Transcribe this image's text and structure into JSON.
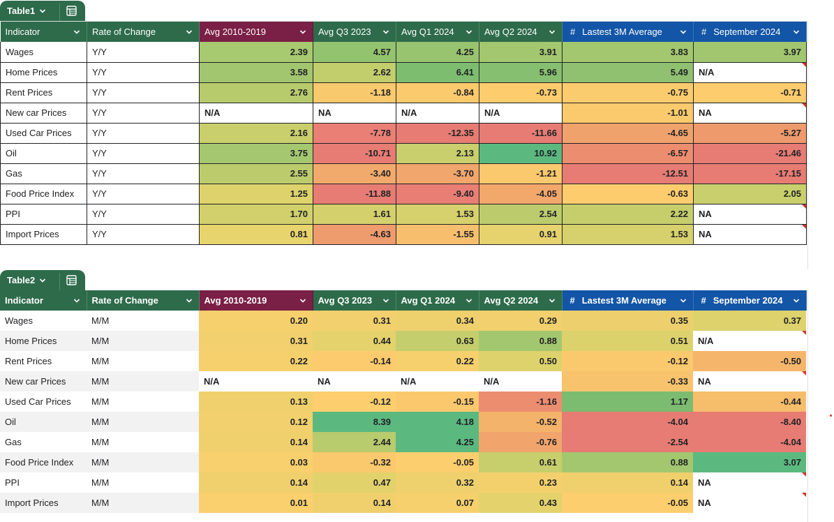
{
  "tables": [
    {
      "name": "Table1",
      "headers": {
        "indicator": "Indicator",
        "rate": "Rate of Change",
        "cols": [
          "Avg 2010-2019",
          "Avg Q3 2023",
          "Avg Q1 2024",
          "Avg Q2 2024",
          "Lastest 3M Average",
          "September 2024"
        ],
        "hash": "#"
      },
      "rows": [
        {
          "indicator": "Wages",
          "rate": "Y/Y",
          "values": [
            "2.39",
            "4.57",
            "4.25",
            "3.91",
            "3.83",
            "3.97"
          ],
          "colors": [
            "#a7c96f",
            "#94c36f",
            "#98c46f",
            "#a2c76f",
            "#a3c76f",
            "#a1c66f"
          ]
        },
        {
          "indicator": "Home Prices",
          "rate": "Y/Y",
          "values": [
            "3.58",
            "2.62",
            "6.41",
            "5.96",
            "5.49",
            "N/A"
          ],
          "colors": [
            "#a1c66f",
            "#c2cd6c",
            "#7dbd70",
            "#86bf70",
            "#8fc170",
            ""
          ]
        },
        {
          "indicator": "Rent Prices",
          "rate": "Y/Y",
          "values": [
            "2.76",
            "-1.18",
            "-0.84",
            "-0.73",
            "-0.75",
            "-0.71"
          ],
          "colors": [
            "#b7cb6d",
            "#f8c96d",
            "#fbca6d",
            "#fccc6d",
            "#fbcc6d",
            "#fccc6d"
          ]
        },
        {
          "indicator": "New car Prices",
          "rate": "Y/Y",
          "values": [
            "N/A",
            "NA",
            "N/A",
            "N/A",
            "-1.01",
            "NA"
          ],
          "colors": [
            "",
            "",
            "",
            "",
            "#fbca6d",
            ""
          ]
        },
        {
          "indicator": "Used Car Prices",
          "rate": "Y/Y",
          "values": [
            "2.16",
            "-7.78",
            "-12.35",
            "-11.66",
            "-4.65",
            "-5.27"
          ],
          "colors": [
            "#c9cf6c",
            "#ea7f75",
            "#e67c73",
            "#e67c73",
            "#f0a26c",
            "#ee9a6d"
          ]
        },
        {
          "indicator": "Oil",
          "rate": "Y/Y",
          "values": [
            "3.75",
            "-10.71",
            "2.13",
            "10.92",
            "-6.57",
            "-21.46"
          ],
          "colors": [
            "#a5c770",
            "#e67c73",
            "#c8cf6c",
            "#5bb980",
            "#ec8d70",
            "#e67c73"
          ]
        },
        {
          "indicator": "Gas",
          "rate": "Y/Y",
          "values": [
            "2.55",
            "-3.40",
            "-3.70",
            "-1.21",
            "-12.51",
            "-17.15"
          ],
          "colors": [
            "#bccc6d",
            "#f1aa6b",
            "#f0a66c",
            "#fbc96d",
            "#e67c73",
            "#e67c73"
          ]
        },
        {
          "indicator": "Food Price Index",
          "rate": "Y/Y",
          "values": [
            "1.25",
            "-11.88",
            "-9.40",
            "-4.05",
            "-0.63",
            "2.05"
          ],
          "colors": [
            "#ddd26c",
            "#e67c73",
            "#e87e74",
            "#f2a76b",
            "#fccc6d",
            "#c9cf6c"
          ]
        },
        {
          "indicator": "PPI",
          "rate": "Y/Y",
          "values": [
            "1.70",
            "1.61",
            "1.53",
            "2.54",
            "2.22",
            "NA"
          ],
          "colors": [
            "#d1d06c",
            "#d4d06c",
            "#d6d16c",
            "#bccc6d",
            "#c6ce6c",
            ""
          ]
        },
        {
          "indicator": "Import Prices",
          "rate": "Y/Y",
          "values": [
            "0.81",
            "-4.63",
            "-1.55",
            "0.91",
            "1.53",
            "NA"
          ],
          "colors": [
            "#e8d46d",
            "#ee9b6e",
            "#f7bf6d",
            "#e6d36d",
            "#d6d16c",
            ""
          ]
        }
      ]
    },
    {
      "name": "Table2",
      "headers": {
        "indicator": "Indicator",
        "rate": "Rate of Change",
        "cols": [
          "Avg 2010-2019",
          "Avg Q3 2023",
          "Avg Q1 2024",
          "Avg Q2 2024",
          "Lastest 3M Average",
          "September 2024"
        ],
        "hash": "#"
      },
      "rows": [
        {
          "indicator": "Wages",
          "rate": "M/M",
          "values": [
            "0.20",
            "0.31",
            "0.34",
            "0.29",
            "0.35",
            "0.37"
          ],
          "colors": [
            "#f5d06d",
            "#f1d06d",
            "#eed06d",
            "#f2d06d",
            "#edd06d",
            "#ddd26c"
          ]
        },
        {
          "indicator": "Home Prices",
          "rate": "M/M",
          "values": [
            "0.31",
            "0.44",
            "0.63",
            "0.88",
            "0.51",
            "N/A"
          ],
          "colors": [
            "#f1d06d",
            "#e5d26c",
            "#c5ce6c",
            "#a3c76f",
            "#dcd26c",
            ""
          ]
        },
        {
          "indicator": "Rent Prices",
          "rate": "M/M",
          "values": [
            "0.22",
            "-0.14",
            "0.22",
            "0.50",
            "-0.12",
            "-0.50"
          ],
          "colors": [
            "#f5d06d",
            "#fccb6d",
            "#f5d06d",
            "#ddd26c",
            "#fbc96d",
            "#f5b66b"
          ]
        },
        {
          "indicator": "New car Prices",
          "rate": "M/M",
          "values": [
            "N/A",
            "NA",
            "N/A",
            "N/A",
            "-0.33",
            "NA"
          ],
          "colors": [
            "",
            "",
            "",
            "",
            "#f8c36d",
            ""
          ]
        },
        {
          "indicator": "Used Car Prices",
          "rate": "M/M",
          "values": [
            "0.13",
            "-0.12",
            "-0.15",
            "-1.16",
            "1.17",
            "-0.44"
          ],
          "colors": [
            "#f0d06d",
            "#fcce6d",
            "#fcc86d",
            "#ec8d70",
            "#7cbc70",
            "#f6bd6b"
          ]
        },
        {
          "indicator": "Oil",
          "rate": "M/M",
          "values": [
            "0.12",
            "8.39",
            "4.18",
            "-0.52",
            "-4.04",
            "-8.40"
          ],
          "colors": [
            "#f1d06d",
            "#5bb980",
            "#5bb980",
            "#f4b36b",
            "#e67c73",
            "#e67c73"
          ]
        },
        {
          "indicator": "Gas",
          "rate": "M/M",
          "values": [
            "0.14",
            "2.44",
            "4.25",
            "-0.76",
            "-2.54",
            "-4.04"
          ],
          "colors": [
            "#f0d06d",
            "#b8cb6d",
            "#5bb980",
            "#f1a56c",
            "#e67c73",
            "#e67c73"
          ]
        },
        {
          "indicator": "Food Price Index",
          "rate": "M/M",
          "values": [
            "0.03",
            "-0.32",
            "-0.05",
            "0.61",
            "0.88",
            "3.07"
          ],
          "colors": [
            "#f8d06d",
            "#fbc96d",
            "#fcce6d",
            "#c7ce6c",
            "#a2c76f",
            "#5bb980"
          ]
        },
        {
          "indicator": "PPI",
          "rate": "M/M",
          "values": [
            "0.14",
            "0.47",
            "0.32",
            "0.23",
            "0.14",
            "NA"
          ],
          "colors": [
            "#f0d06d",
            "#e2d26c",
            "#eed06d",
            "#f4d06d",
            "#f0d06d",
            ""
          ]
        },
        {
          "indicator": "Import Prices",
          "rate": "M/M",
          "values": [
            "0.01",
            "0.14",
            "0.07",
            "0.43",
            "-0.05",
            "NA"
          ],
          "colors": [
            "#f9d06d",
            "#f0d06d",
            "#f5d06d",
            "#e4d26c",
            "#fcce6d",
            ""
          ]
        }
      ]
    }
  ],
  "colors": {
    "header_green": "#2d6b4b",
    "header_red": "#7a1f45",
    "header_blue": "#1355a6",
    "note_marker": "#d93025"
  },
  "icons": {
    "tab_chevron": "chevron-down-icon",
    "tab_menu": "table-icon",
    "header_dropdown": "chevron-down-icon",
    "number_format": "hash-icon"
  }
}
